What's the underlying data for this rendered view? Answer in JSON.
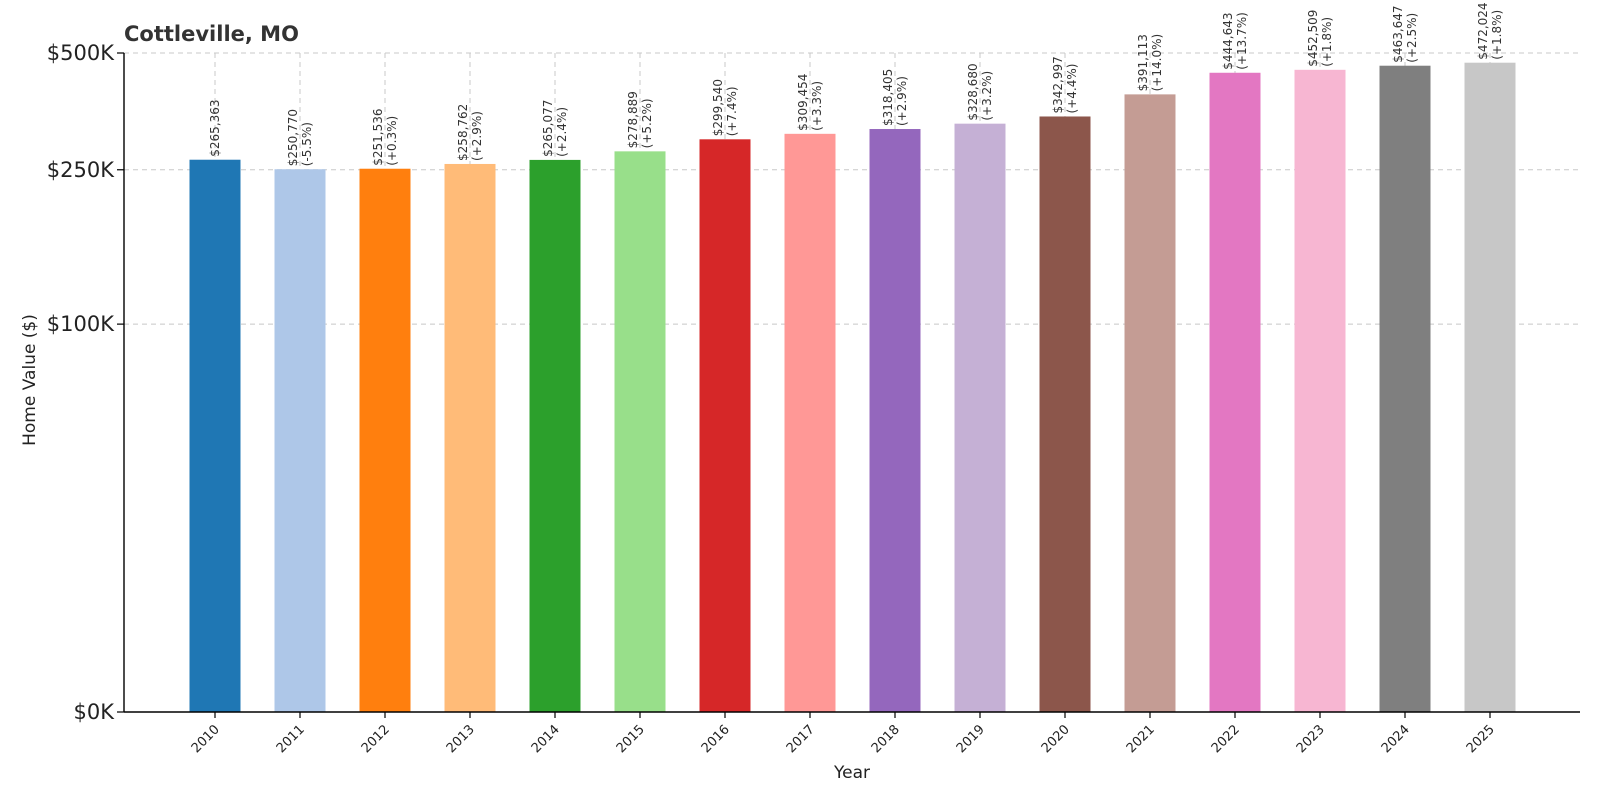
{
  "chart_data": {
    "type": "bar",
    "title": "Cottleville, MO",
    "xlabel": "Year",
    "ylabel": "Home Value ($)",
    "categories": [
      "2010",
      "2011",
      "2012",
      "2013",
      "2014",
      "2015",
      "2016",
      "2017",
      "2018",
      "2019",
      "2020",
      "2021",
      "2022",
      "2023",
      "2024",
      "2025"
    ],
    "values": [
      265363,
      250770,
      251536,
      258762,
      265077,
      278889,
      299540,
      309454,
      318405,
      328680,
      342997,
      391113,
      444643,
      452509,
      463647,
      472024
    ],
    "value_labels": [
      "$265,363",
      "$250,770",
      "$251,536",
      "$258,762",
      "$265,077",
      "$278,889",
      "$299,540",
      "$309,454",
      "$318,405",
      "$328,680",
      "$342,997",
      "$391,113",
      "$444,643",
      "$452,509",
      "$463,647",
      "$472,024"
    ],
    "change_labels": [
      "",
      "(-5.5%)",
      "(+0.3%)",
      "(+2.9%)",
      "(+2.4%)",
      "(+5.2%)",
      "(+7.4%)",
      "(+3.3%)",
      "(+2.9%)",
      "(+3.2%)",
      "(+4.4%)",
      "(+14.0%)",
      "(+13.7%)",
      "(+1.8%)",
      "(+2.5%)",
      "(+1.8%)"
    ],
    "colors": [
      "#1f77b4",
      "#aec7e8",
      "#ff7f0e",
      "#ffbb78",
      "#2ca02c",
      "#98df8a",
      "#d62728",
      "#ff9896",
      "#9467bd",
      "#c5b0d5",
      "#8c564b",
      "#c49c94",
      "#e377c2",
      "#f7b6d2",
      "#7f7f7f",
      "#c7c7c7"
    ],
    "yticks": [
      0,
      100000,
      250000,
      500000
    ],
    "ytick_labels": [
      "$0K",
      "$100K",
      "$250K",
      "$500K"
    ],
    "yscale": "symlog",
    "ylim": [
      0,
      500000
    ],
    "grid": true
  }
}
